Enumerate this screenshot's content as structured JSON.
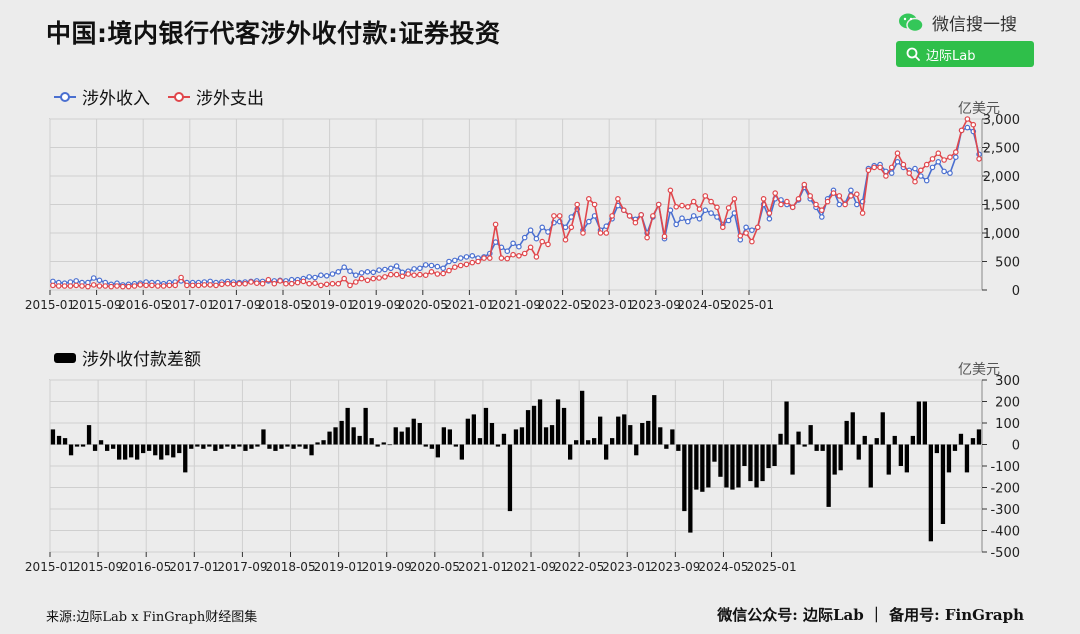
{
  "title": "中国:境内银行代客涉外收付款:证券投资",
  "brand": {
    "name": "微信搜一搜",
    "search_text": "边际Lab",
    "icon": "wechat-icon"
  },
  "footer": {
    "source": "来源:边际Lab x FinGraph财经图集",
    "right": "微信公众号:  边际Lab  ｜  备用号:  FinGraph"
  },
  "x_tick_labels": [
    "2015-01",
    "2015-09",
    "2016-05",
    "2017-01",
    "2017-09",
    "2018-05",
    "2019-01",
    "2019-09",
    "2020-05",
    "2021-01",
    "2021-09",
    "2022-05",
    "2023-01",
    "2023-09",
    "2024-05",
    "2025-01"
  ],
  "colors": {
    "income": "#4a6fd0",
    "expense": "#e0474c",
    "bar": "#000000",
    "grid": "#cfcfcf"
  },
  "chart_data": [
    {
      "type": "line",
      "title": "",
      "unit": "亿美元",
      "ylim": [
        0,
        3000
      ],
      "yticks": [
        "0",
        "500",
        "1,000",
        "1,500",
        "2,000",
        "2,500",
        "3,000"
      ],
      "grid": true,
      "legend_position": "top-left",
      "x_start": "2015-01",
      "x_end": "2025-04",
      "series": [
        {
          "name": "涉外收入",
          "values": [
            150,
            130,
            120,
            140,
            160,
            130,
            130,
            210,
            170,
            130,
            100,
            120,
            90,
            100,
            110,
            120,
            140,
            130,
            130,
            110,
            130,
            140,
            160,
            130,
            130,
            130,
            140,
            150,
            130,
            140,
            150,
            140,
            130,
            140,
            150,
            160,
            150,
            160,
            160,
            170,
            160,
            180,
            180,
            200,
            230,
            220,
            260,
            250,
            280,
            320,
            400,
            330,
            260,
            300,
            320,
            310,
            350,
            360,
            380,
            420,
            310,
            330,
            370,
            380,
            440,
            430,
            410,
            380,
            500,
            520,
            560,
            580,
            600,
            560,
            580,
            640,
            840,
            750,
            680,
            820,
            760,
            920,
            1050,
            900,
            1100,
            1020,
            1180,
            1200,
            1100,
            1280,
            1420,
            1050,
            1200,
            1300,
            1050,
            1120,
            1250,
            1480,
            1400,
            1300,
            1240,
            1320,
            1000,
            1280,
            1500,
            900,
            1400,
            1150,
            1260,
            1200,
            1300,
            1250,
            1400,
            1350,
            1280,
            1150,
            1220,
            1350,
            880,
            1100,
            1050,
            1100,
            1500,
            1250,
            1600,
            1580,
            1500,
            1450,
            1580,
            1800,
            1600,
            1450,
            1280,
            1600,
            1750,
            1500,
            1520,
            1750,
            1500,
            1550,
            2130,
            2180,
            2200,
            2080,
            2050,
            2250,
            2150,
            2100,
            2130,
            2000,
            1920,
            2150,
            2250,
            2080,
            2050,
            2330,
            2800,
            2850,
            2780,
            2380
          ]
        },
        {
          "name": "涉外支出",
          "values": [
            80,
            70,
            70,
            70,
            80,
            70,
            60,
            90,
            70,
            70,
            60,
            70,
            60,
            60,
            70,
            90,
            80,
            80,
            70,
            70,
            80,
            80,
            220,
            80,
            80,
            80,
            90,
            90,
            80,
            100,
            110,
            100,
            110,
            110,
            140,
            120,
            110,
            180,
            110,
            160,
            110,
            110,
            130,
            150,
            110,
            120,
            80,
            100,
            110,
            110,
            200,
            80,
            140,
            200,
            170,
            200,
            210,
            230,
            270,
            270,
            240,
            280,
            260,
            270,
            260,
            320,
            280,
            290,
            340,
            400,
            430,
            450,
            480,
            500,
            560,
            560,
            1150,
            560,
            550,
            620,
            600,
            640,
            750,
            580,
            850,
            800,
            1300,
            1300,
            880,
            1100,
            1500,
            1000,
            1600,
            1500,
            1000,
            1000,
            1300,
            1600,
            1400,
            1300,
            1180,
            1320,
            920,
            1300,
            1500,
            940,
            1750,
            1460,
            1480,
            1460,
            1550,
            1420,
            1650,
            1550,
            1450,
            1100,
            1440,
            1600,
            950,
            1000,
            850,
            1100,
            1600,
            1350,
            1700,
            1500,
            1550,
            1450,
            1600,
            1850,
            1650,
            1500,
            1400,
            1550,
            1700,
            1650,
            1500,
            1650,
            1680,
            1350,
            2100,
            2150,
            2150,
            2000,
            2150,
            2400,
            2200,
            2050,
            1900,
            2100,
            2200,
            2300,
            2400,
            2280,
            2330,
            2420,
            2800,
            3000,
            2900,
            2300
          ]
        }
      ]
    },
    {
      "type": "bar",
      "title": "",
      "unit": "亿美元",
      "ylim": [
        -500,
        300
      ],
      "yticks": [
        "-500",
        "-400",
        "-300",
        "-200",
        "-100",
        "0",
        "100",
        "200",
        "300"
      ],
      "grid": true,
      "legend_position": "top-left",
      "series": [
        {
          "name": "涉外收付款差额",
          "values": [
            70,
            40,
            30,
            -50,
            -10,
            -10,
            90,
            -30,
            20,
            -30,
            -20,
            -70,
            -70,
            -60,
            -70,
            -40,
            -30,
            -50,
            -70,
            -50,
            -60,
            -40,
            -130,
            -20,
            -10,
            -20,
            -10,
            -30,
            -20,
            -10,
            -20,
            -10,
            -30,
            -20,
            -10,
            70,
            -20,
            -30,
            -20,
            -10,
            -20,
            -10,
            -20,
            -50,
            10,
            20,
            60,
            80,
            110,
            170,
            80,
            40,
            170,
            30,
            -10,
            10,
            0,
            80,
            60,
            80,
            120,
            100,
            -10,
            -20,
            -60,
            80,
            70,
            -10,
            -70,
            120,
            140,
            30,
            170,
            100,
            -10,
            50,
            -310,
            70,
            80,
            160,
            180,
            210,
            80,
            90,
            210,
            170,
            -70,
            20,
            250,
            20,
            30,
            130,
            -70,
            30,
            130,
            140,
            90,
            -50,
            100,
            110,
            230,
            80,
            -20,
            70,
            -30,
            -310,
            -410,
            -210,
            -220,
            -200,
            -80,
            -150,
            -200,
            -210,
            -200,
            -100,
            -170,
            -200,
            -170,
            -110,
            -100,
            50,
            200,
            -140,
            60,
            -10,
            90,
            -30,
            -30,
            -290,
            -140,
            -120,
            110,
            150,
            -70,
            40,
            -200,
            30,
            150,
            -140,
            40,
            -100,
            -130,
            40,
            200,
            200,
            -450,
            -40,
            -370,
            -130,
            -30,
            50,
            -130,
            30,
            70
          ]
        }
      ]
    }
  ]
}
